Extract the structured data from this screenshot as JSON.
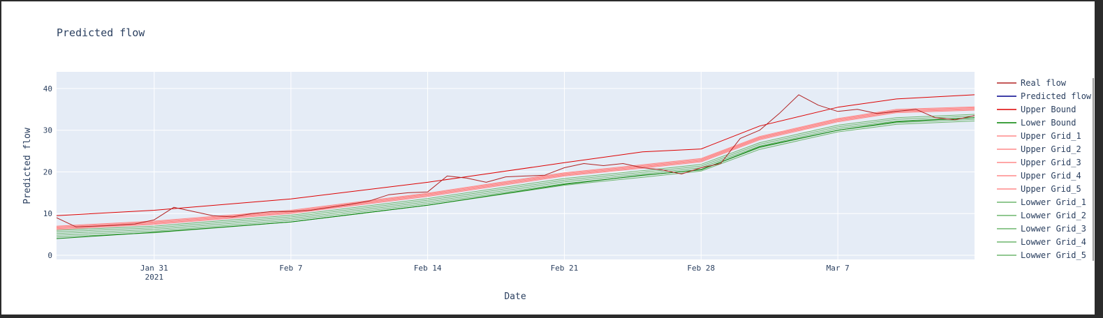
{
  "chart_data": {
    "type": "line",
    "title": "Predicted flow",
    "xlabel": "Date",
    "ylabel": "Predicted flow",
    "x_range": [
      "2021-01-26",
      "2021-03-14"
    ],
    "ylim": [
      -1,
      44
    ],
    "x_ticks": [
      {
        "date": "2021-01-31",
        "label": "Jan 31",
        "sublabel": "2021"
      },
      {
        "date": "2021-02-07",
        "label": "Feb 7",
        "sublabel": ""
      },
      {
        "date": "2021-02-14",
        "label": "Feb 14",
        "sublabel": ""
      },
      {
        "date": "2021-02-21",
        "label": "Feb 21",
        "sublabel": ""
      },
      {
        "date": "2021-02-28",
        "label": "Feb 28",
        "sublabel": ""
      },
      {
        "date": "2021-03-07",
        "label": "Mar 7",
        "sublabel": ""
      }
    ],
    "y_ticks": [
      0,
      10,
      20,
      30,
      40
    ],
    "grid": true,
    "legend_position": "right",
    "plot_background": "#e5ecf6",
    "series": [
      {
        "name": "Real flow",
        "color": "#b22222",
        "width": 1,
        "dates": [
          "2021-01-26",
          "2021-01-27",
          "2021-01-28",
          "2021-01-29",
          "2021-01-30",
          "2021-01-31",
          "2021-02-01",
          "2021-02-02",
          "2021-02-03",
          "2021-02-04",
          "2021-02-05",
          "2021-02-06",
          "2021-02-07",
          "2021-02-08",
          "2021-02-09",
          "2021-02-10",
          "2021-02-11",
          "2021-02-12",
          "2021-02-13",
          "2021-02-14",
          "2021-02-15",
          "2021-02-16",
          "2021-02-17",
          "2021-02-18",
          "2021-02-19",
          "2021-02-20",
          "2021-02-21",
          "2021-02-22",
          "2021-02-23",
          "2021-02-24",
          "2021-02-25",
          "2021-02-26",
          "2021-02-27",
          "2021-02-28",
          "2021-03-01",
          "2021-03-02",
          "2021-03-03",
          "2021-03-04",
          "2021-03-05",
          "2021-03-06",
          "2021-03-07",
          "2021-03-08",
          "2021-03-09",
          "2021-03-10",
          "2021-03-11",
          "2021-03-12",
          "2021-03-13",
          "2021-03-14"
        ],
        "values": [
          9.0,
          6.8,
          7.0,
          7.2,
          7.5,
          8.5,
          11.5,
          10.5,
          9.5,
          9.2,
          10.0,
          10.5,
          10.5,
          10.8,
          11.5,
          12.2,
          13.0,
          14.5,
          15.0,
          15.2,
          19.0,
          18.5,
          17.5,
          18.8,
          19.0,
          19.2,
          21.0,
          22.0,
          21.5,
          22.0,
          21.0,
          20.5,
          19.5,
          21.0,
          22.0,
          28.0,
          30.0,
          34.0,
          38.5,
          36.0,
          34.5,
          35.0,
          34.0,
          34.5,
          35.0,
          33.0,
          32.5,
          33.5
        ]
      },
      {
        "name": "Predicted flow",
        "color": "#00008b",
        "width": 1,
        "dates": [],
        "values": []
      },
      {
        "name": "Upper Bound",
        "color": "#dd0000",
        "width": 1,
        "dates": [
          "2021-01-26",
          "2021-01-31",
          "2021-02-07",
          "2021-02-14",
          "2021-02-21",
          "2021-02-25",
          "2021-02-28",
          "2021-03-03",
          "2021-03-07",
          "2021-03-10",
          "2021-03-14"
        ],
        "values": [
          9.5,
          10.8,
          13.5,
          17.5,
          22.2,
          24.8,
          25.5,
          31.0,
          35.5,
          37.5,
          38.5
        ]
      },
      {
        "name": "Lower Bound",
        "color": "#008000",
        "width": 1,
        "dates": [
          "2021-01-26",
          "2021-01-31",
          "2021-02-07",
          "2021-02-14",
          "2021-02-21",
          "2021-02-25",
          "2021-02-28",
          "2021-03-03",
          "2021-03-07",
          "2021-03-10",
          "2021-03-14"
        ],
        "values": [
          4.0,
          5.5,
          8.0,
          12.0,
          17.0,
          19.2,
          20.5,
          26.0,
          30.0,
          32.0,
          33.0
        ]
      },
      {
        "name": "Upper Grid_1",
        "color": "#ff8a8a",
        "width": 1,
        "dates": [
          "2021-01-26",
          "2021-01-31",
          "2021-02-07",
          "2021-02-14",
          "2021-02-21",
          "2021-02-25",
          "2021-02-28",
          "2021-03-03",
          "2021-03-07",
          "2021-03-10",
          "2021-03-14"
        ],
        "values": [
          7.0,
          8.2,
          10.8,
          14.9,
          19.8,
          21.7,
          23.2,
          28.5,
          32.8,
          35.0,
          35.6
        ]
      },
      {
        "name": "Upper Grid_2",
        "color": "#ff8a8a",
        "width": 1,
        "dates": [
          "2021-01-26",
          "2021-01-31",
          "2021-02-07",
          "2021-02-14",
          "2021-02-21",
          "2021-02-25",
          "2021-02-28",
          "2021-03-03",
          "2021-03-07",
          "2021-03-10",
          "2021-03-14"
        ],
        "values": [
          6.8,
          8.0,
          10.6,
          14.7,
          19.6,
          21.5,
          23.0,
          28.3,
          32.6,
          34.8,
          35.4
        ]
      },
      {
        "name": "Upper Grid_3",
        "color": "#ff8a8a",
        "width": 1,
        "dates": [
          "2021-01-26",
          "2021-01-31",
          "2021-02-07",
          "2021-02-14",
          "2021-02-21",
          "2021-02-25",
          "2021-02-28",
          "2021-03-03",
          "2021-03-07",
          "2021-03-10",
          "2021-03-14"
        ],
        "values": [
          6.6,
          7.8,
          10.4,
          14.5,
          19.4,
          21.3,
          22.8,
          28.1,
          32.4,
          34.6,
          35.2
        ]
      },
      {
        "name": "Upper Grid_4",
        "color": "#ff8a8a",
        "width": 1,
        "dates": [
          "2021-01-26",
          "2021-01-31",
          "2021-02-07",
          "2021-02-14",
          "2021-02-21",
          "2021-02-25",
          "2021-02-28",
          "2021-03-03",
          "2021-03-07",
          "2021-03-10",
          "2021-03-14"
        ],
        "values": [
          6.4,
          7.6,
          10.2,
          14.3,
          19.2,
          21.1,
          22.6,
          27.9,
          32.2,
          34.4,
          35.0
        ]
      },
      {
        "name": "Upper Grid_5",
        "color": "#ff8a8a",
        "width": 1,
        "dates": [
          "2021-01-26",
          "2021-01-31",
          "2021-02-07",
          "2021-02-14",
          "2021-02-21",
          "2021-02-25",
          "2021-02-28",
          "2021-03-03",
          "2021-03-07",
          "2021-03-10",
          "2021-03-14"
        ],
        "values": [
          6.2,
          7.4,
          10.0,
          14.1,
          19.0,
          20.9,
          22.4,
          27.7,
          32.0,
          34.2,
          34.8
        ]
      },
      {
        "name": "Lowwer Grid_1",
        "color": "#6db56d",
        "width": 1,
        "dates": [
          "2021-01-26",
          "2021-01-31",
          "2021-02-07",
          "2021-02-14",
          "2021-02-21",
          "2021-02-25",
          "2021-02-28",
          "2021-03-03",
          "2021-03-07",
          "2021-03-10",
          "2021-03-14"
        ],
        "values": [
          6.0,
          7.0,
          9.6,
          13.6,
          18.4,
          20.3,
          21.8,
          27.0,
          31.2,
          33.0,
          33.8
        ]
      },
      {
        "name": "Lowwer Grid_2",
        "color": "#6db56d",
        "width": 1,
        "dates": [
          "2021-01-26",
          "2021-01-31",
          "2021-02-07",
          "2021-02-14",
          "2021-02-21",
          "2021-02-25",
          "2021-02-28",
          "2021-03-03",
          "2021-03-07",
          "2021-03-10",
          "2021-03-14"
        ],
        "values": [
          5.6,
          6.6,
          9.2,
          13.2,
          18.0,
          19.9,
          21.4,
          26.6,
          30.8,
          32.6,
          33.4
        ]
      },
      {
        "name": "Lowwer Grid_3",
        "color": "#6db56d",
        "width": 1,
        "dates": [
          "2021-01-26",
          "2021-01-31",
          "2021-02-07",
          "2021-02-14",
          "2021-02-21",
          "2021-02-25",
          "2021-02-28",
          "2021-03-03",
          "2021-03-07",
          "2021-03-10",
          "2021-03-14"
        ],
        "values": [
          5.2,
          6.2,
          8.8,
          12.8,
          17.6,
          19.5,
          21.0,
          26.2,
          30.4,
          32.2,
          33.0
        ]
      },
      {
        "name": "Lowwer Grid_4",
        "color": "#6db56d",
        "width": 1,
        "dates": [
          "2021-01-26",
          "2021-01-31",
          "2021-02-07",
          "2021-02-14",
          "2021-02-21",
          "2021-02-25",
          "2021-02-28",
          "2021-03-03",
          "2021-03-07",
          "2021-03-10",
          "2021-03-14"
        ],
        "values": [
          4.8,
          5.8,
          8.4,
          12.4,
          17.2,
          19.1,
          20.6,
          25.8,
          30.0,
          31.8,
          32.6
        ]
      },
      {
        "name": "Lowwer Grid_5",
        "color": "#6db56d",
        "width": 1,
        "dates": [
          "2021-01-26",
          "2021-01-31",
          "2021-02-07",
          "2021-02-14",
          "2021-02-21",
          "2021-02-25",
          "2021-02-28",
          "2021-03-03",
          "2021-03-07",
          "2021-03-10",
          "2021-03-14"
        ],
        "values": [
          4.4,
          5.4,
          8.0,
          12.0,
          16.8,
          18.7,
          20.2,
          25.4,
          29.6,
          31.4,
          32.2
        ]
      }
    ]
  }
}
